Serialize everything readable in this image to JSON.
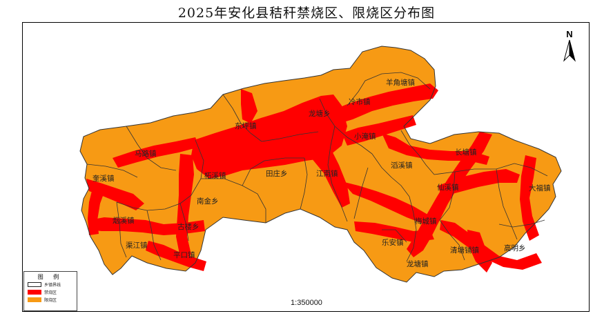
{
  "title": "2025年安化县秸秆禁烧区、限烧区分布图",
  "north_label": "N",
  "scale_text": "1:350000",
  "colors": {
    "restricted": "#f79a14",
    "banned": "#ff0000",
    "boundary": "#333333"
  },
  "legend": {
    "title": "图 例",
    "items": [
      {
        "label": "乡镇界线",
        "color": "#ffffff"
      },
      {
        "label": "禁烧区",
        "color": "#ff0000"
      },
      {
        "label": "限烧区",
        "color": "#f79a14"
      }
    ]
  },
  "towns": [
    {
      "label": "羊角塘镇"
    },
    {
      "label": "冷市镇"
    },
    {
      "label": "龙塘乡"
    },
    {
      "label": "东坪镇"
    },
    {
      "label": "小淹镇"
    },
    {
      "label": "马路镇"
    },
    {
      "label": "长塘镇"
    },
    {
      "label": "柘溪镇"
    },
    {
      "label": "田庄乡"
    },
    {
      "label": "江南镇"
    },
    {
      "label": "滔溪镇"
    },
    {
      "label": "奎溪镇"
    },
    {
      "label": "仙溪镇"
    },
    {
      "label": "大福镇"
    },
    {
      "label": "南金乡"
    },
    {
      "label": "烟溪镇"
    },
    {
      "label": "古楼乡"
    },
    {
      "label": "梅城镇"
    },
    {
      "label": "渠江镇"
    },
    {
      "label": "乐安镇"
    },
    {
      "label": "清塘铺镇"
    },
    {
      "label": "高明乡"
    },
    {
      "label": "平口镇"
    },
    {
      "label": "龙塘镇"
    }
  ]
}
